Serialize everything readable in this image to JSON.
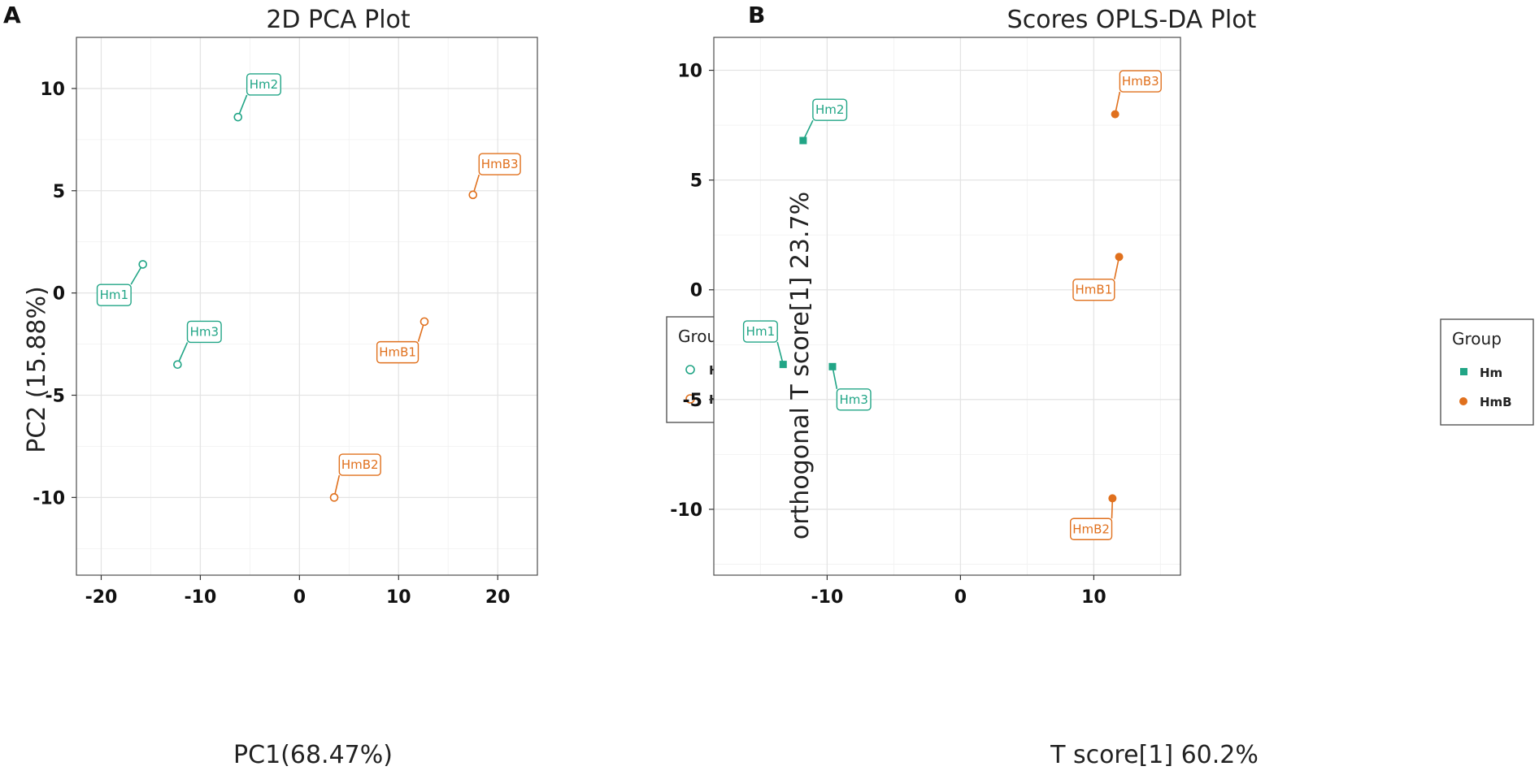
{
  "colors": {
    "Hm": "#21a586",
    "HmB": "#e0701d"
  },
  "panels": [
    "A",
    "B"
  ],
  "chart_data": [
    {
      "type": "scatter",
      "title": "2D PCA Plot",
      "xlabel": "PC1(68.47%)",
      "ylabel": "PC2 (15.88%)",
      "xlim": [
        -22.5,
        24
      ],
      "ylim": [
        -13.8,
        12.5
      ],
      "xticks": [
        -20,
        -10,
        0,
        10,
        20
      ],
      "yticks": [
        -10,
        -5,
        0,
        5,
        10
      ],
      "xtick_labels": [
        "-20",
        "-10",
        "0",
        "10",
        "20"
      ],
      "ytick_labels": [
        "-10",
        "-5",
        "0",
        "5",
        "10"
      ],
      "marker": "open-circle",
      "legend": {
        "title": "Group",
        "entries": [
          "Hm",
          "HmB"
        ],
        "position": "right"
      },
      "series": [
        {
          "name": "Hm",
          "points": [
            {
              "label": "Hm1",
              "x": -15.8,
              "y": 1.4,
              "lx": -18.7,
              "ly": -0.1
            },
            {
              "label": "Hm2",
              "x": -6.2,
              "y": 8.6,
              "lx": -3.6,
              "ly": 10.2
            },
            {
              "label": "Hm3",
              "x": -12.3,
              "y": -3.5,
              "lx": -9.6,
              "ly": -1.9
            }
          ]
        },
        {
          "name": "HmB",
          "points": [
            {
              "label": "HmB1",
              "x": 12.6,
              "y": -1.4,
              "lx": 9.9,
              "ly": -2.9
            },
            {
              "label": "HmB2",
              "x": 3.5,
              "y": -10.0,
              "lx": 6.1,
              "ly": -8.4
            },
            {
              "label": "HmB3",
              "x": 17.5,
              "y": 4.8,
              "lx": 20.2,
              "ly": 6.3
            }
          ]
        }
      ]
    },
    {
      "type": "scatter",
      "title": "Scores  OPLS-DA Plot",
      "xlabel": "T score[1] 60.2%",
      "ylabel": "orthogonal T score[1] 23.7%",
      "xlim": [
        -18.5,
        16.5
      ],
      "ylim": [
        -13,
        11.5
      ],
      "xticks": [
        -10,
        0,
        10
      ],
      "yticks": [
        -10,
        -5,
        0,
        5,
        10
      ],
      "xtick_labels": [
        "-10",
        "0",
        "10"
      ],
      "ytick_labels": [
        "-10",
        "-5",
        "0",
        "5",
        "10"
      ],
      "marker": "filled",
      "legend": {
        "title": "Group",
        "entries": [
          "Hm",
          "HmB"
        ],
        "position": "right"
      },
      "series": [
        {
          "name": "Hm",
          "points": [
            {
              "label": "Hm1",
              "x": -13.3,
              "y": -3.4,
              "lx": -15.0,
              "ly": -1.9
            },
            {
              "label": "Hm2",
              "x": -11.8,
              "y": 6.8,
              "lx": -9.8,
              "ly": 8.2
            },
            {
              "label": "Hm3",
              "x": -9.6,
              "y": -3.5,
              "lx": -8.0,
              "ly": -5.0
            }
          ]
        },
        {
          "name": "HmB",
          "points": [
            {
              "label": "HmB1",
              "x": 11.9,
              "y": 1.5,
              "lx": 10.0,
              "ly": 0.0
            },
            {
              "label": "HmB2",
              "x": 11.4,
              "y": -9.5,
              "lx": 9.8,
              "ly": -10.9
            },
            {
              "label": "HmB3",
              "x": 11.6,
              "y": 8.0,
              "lx": 13.5,
              "ly": 9.5
            }
          ]
        }
      ]
    }
  ]
}
